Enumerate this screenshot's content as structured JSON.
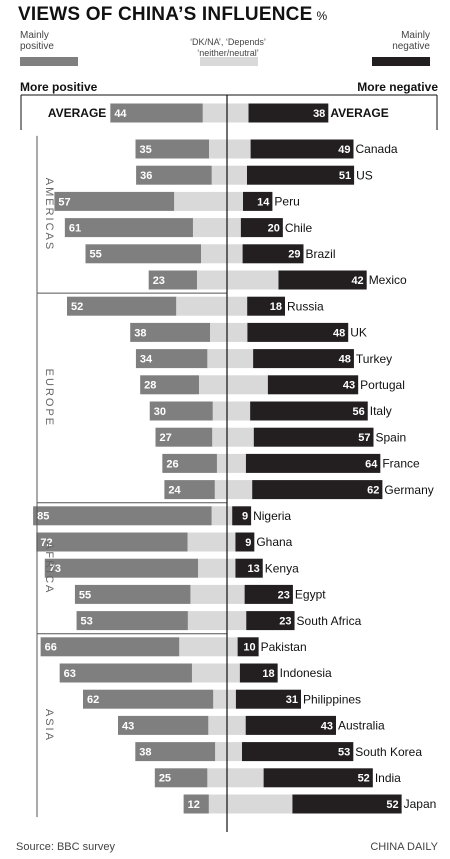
{
  "title": "VIEWS OF CHINA’S INFLUENCE",
  "title_unit": "%",
  "legend": {
    "positive": "Mainly positive",
    "neutral": "‘DK/NA’, ‘Depends’ ‘neither/neutral’",
    "negative": "Mainly negative"
  },
  "header_left": "More positive",
  "header_right": "More negative",
  "source": "Source: BBC survey",
  "credit": "CHINA DAILY",
  "colors": {
    "positive": "#7f7f7f",
    "neutral": "#d9d9d9",
    "negative": "#231f20"
  },
  "chart_data": {
    "type": "bar",
    "stacked": true,
    "diverging": true,
    "series_names": [
      "Mainly positive",
      "DK/NA, Depends, neither/neutral",
      "Mainly negative"
    ],
    "average": {
      "label": "AVERAGE",
      "positive": 44,
      "negative": 38
    },
    "groups": [
      {
        "region": "AMERICAS",
        "rows": [
          {
            "country": "Canada",
            "positive": 35,
            "negative": 49
          },
          {
            "country": "US",
            "positive": 36,
            "negative": 51
          },
          {
            "country": "Peru",
            "positive": 57,
            "negative": 14
          },
          {
            "country": "Chile",
            "positive": 61,
            "negative": 20
          },
          {
            "country": "Brazil",
            "positive": 55,
            "negative": 29
          },
          {
            "country": "Mexico",
            "positive": 23,
            "negative": 42
          }
        ]
      },
      {
        "region": "EUROPE",
        "rows": [
          {
            "country": "Russia",
            "positive": 52,
            "negative": 18
          },
          {
            "country": "UK",
            "positive": 38,
            "negative": 48
          },
          {
            "country": "Turkey",
            "positive": 34,
            "negative": 48
          },
          {
            "country": "Portugal",
            "positive": 28,
            "negative": 43
          },
          {
            "country": "Italy",
            "positive": 30,
            "negative": 56
          },
          {
            "country": "Spain",
            "positive": 27,
            "negative": 57
          },
          {
            "country": "France",
            "positive": 26,
            "negative": 64
          },
          {
            "country": "Germany",
            "positive": 24,
            "negative": 62
          }
        ]
      },
      {
        "region": "AFRICA",
        "rows": [
          {
            "country": "Nigeria",
            "positive": 85,
            "negative": 9
          },
          {
            "country": "Ghana",
            "positive": 72,
            "negative": 9
          },
          {
            "country": "Kenya",
            "positive": 73,
            "negative": 13
          },
          {
            "country": "Egypt",
            "positive": 55,
            "negative": 23
          },
          {
            "country": "South Africa",
            "positive": 53,
            "negative": 23
          }
        ]
      },
      {
        "region": "ASIA",
        "rows": [
          {
            "country": "Pakistan",
            "positive": 66,
            "negative": 10
          },
          {
            "country": "Indonesia",
            "positive": 63,
            "negative": 18
          },
          {
            "country": "Philippines",
            "positive": 62,
            "negative": 31
          },
          {
            "country": "Australia",
            "positive": 43,
            "negative": 43
          },
          {
            "country": "South Korea",
            "positive": 38,
            "negative": 53
          },
          {
            "country": "India",
            "positive": 25,
            "negative": 52
          },
          {
            "country": "Japan",
            "positive": 12,
            "negative": 52
          }
        ]
      }
    ]
  }
}
